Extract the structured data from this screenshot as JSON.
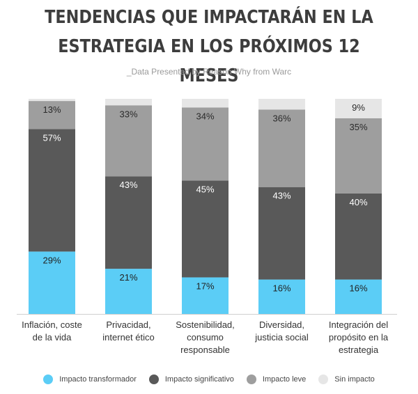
{
  "title_line1": "TENDENCIAS QUE IMPACTARÁN EN LA",
  "title_line2": "ESTRATEGIA EN LOS PRÓXIMOS 12 MESES",
  "subtitle": "_Data Presented by Reason Why from Warc",
  "legend": [
    {
      "label": "Impacto transformador",
      "color": "#5bcdf6"
    },
    {
      "label": "Impacto significativo",
      "color": "#595959"
    },
    {
      "label": "Impacto leve",
      "color": "#9e9e9e"
    },
    {
      "label": "Sin impacto",
      "color": "#e6e6e6"
    }
  ],
  "chart_data": {
    "type": "bar",
    "stacked": true,
    "percent_normalized": true,
    "title": "TENDENCIAS QUE IMPACTARÁN EN LA ESTRATEGIA EN LOS PRÓXIMOS 12 MESES",
    "subtitle": "_Data Presented by Reason Why from Warc",
    "categories": [
      [
        "Inflación, coste",
        "de la vida"
      ],
      [
        "Privacidad,",
        "internet ético"
      ],
      [
        "Sostenibilidad,",
        "consumo",
        "responsable"
      ],
      [
        "Diversidad,",
        "justicia social"
      ],
      [
        "Integración del",
        "propósito en la",
        "estrategia"
      ]
    ],
    "series": [
      {
        "name": "Impacto transformador",
        "color": "#5bcdf6",
        "values": [
          29,
          21,
          17,
          16,
          16
        ],
        "labels": [
          "29%",
          "21%",
          "17%",
          "16%",
          "16%"
        ]
      },
      {
        "name": "Impacto significativo",
        "color": "#595959",
        "values": [
          57,
          43,
          45,
          43,
          40
        ],
        "labels": [
          "57%",
          "43%",
          "45%",
          "43%",
          "40%"
        ]
      },
      {
        "name": "Impacto leve",
        "color": "#9e9e9e",
        "values": [
          13,
          33,
          34,
          36,
          35
        ],
        "labels": [
          "13%",
          "33%",
          "34%",
          "36%",
          "35%"
        ]
      },
      {
        "name": "Sin impacto",
        "color": "#e6e6e6",
        "values": [
          1,
          3,
          4,
          5,
          9
        ],
        "labels": [
          "",
          "",
          "",
          "",
          "9%"
        ]
      }
    ],
    "ylim": [
      0,
      100
    ],
    "grid": false,
    "legend_position": "bottom"
  }
}
